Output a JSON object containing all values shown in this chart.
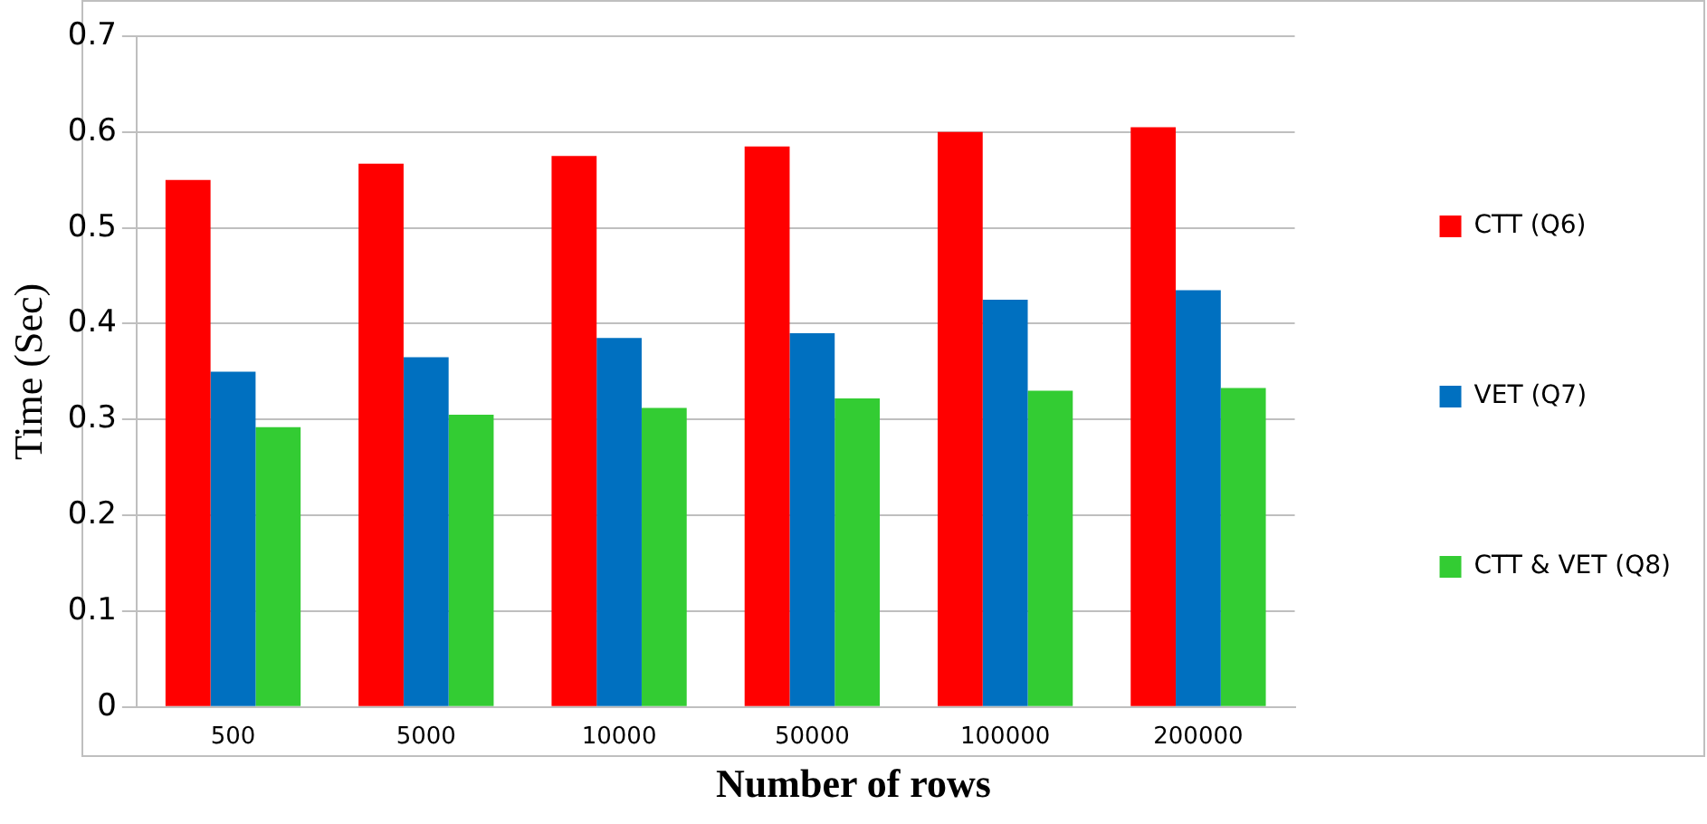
{
  "chart_data": {
    "type": "bar",
    "xlabel": "Number of rows",
    "ylabel": "Time (Sec)",
    "categories": [
      "500",
      "5000",
      "10000",
      "50000",
      "100000",
      "200000"
    ],
    "series": [
      {
        "name": "CTT (Q6)",
        "color": "#ff0000",
        "values": [
          0.55,
          0.567,
          0.575,
          0.585,
          0.6,
          0.605
        ]
      },
      {
        "name": "VET (Q7)",
        "color": "#0070c0",
        "values": [
          0.35,
          0.365,
          0.385,
          0.39,
          0.425,
          0.435
        ]
      },
      {
        "name": "CTT & VET (Q8)",
        "color": "#33cc33",
        "values": [
          0.292,
          0.305,
          0.312,
          0.322,
          0.33,
          0.333
        ]
      }
    ],
    "ylim": [
      0,
      0.7
    ],
    "yticks": [
      0,
      0.1,
      0.2,
      0.3,
      0.4,
      0.5,
      0.6,
      0.7
    ],
    "grid": "y",
    "legend": "right"
  }
}
